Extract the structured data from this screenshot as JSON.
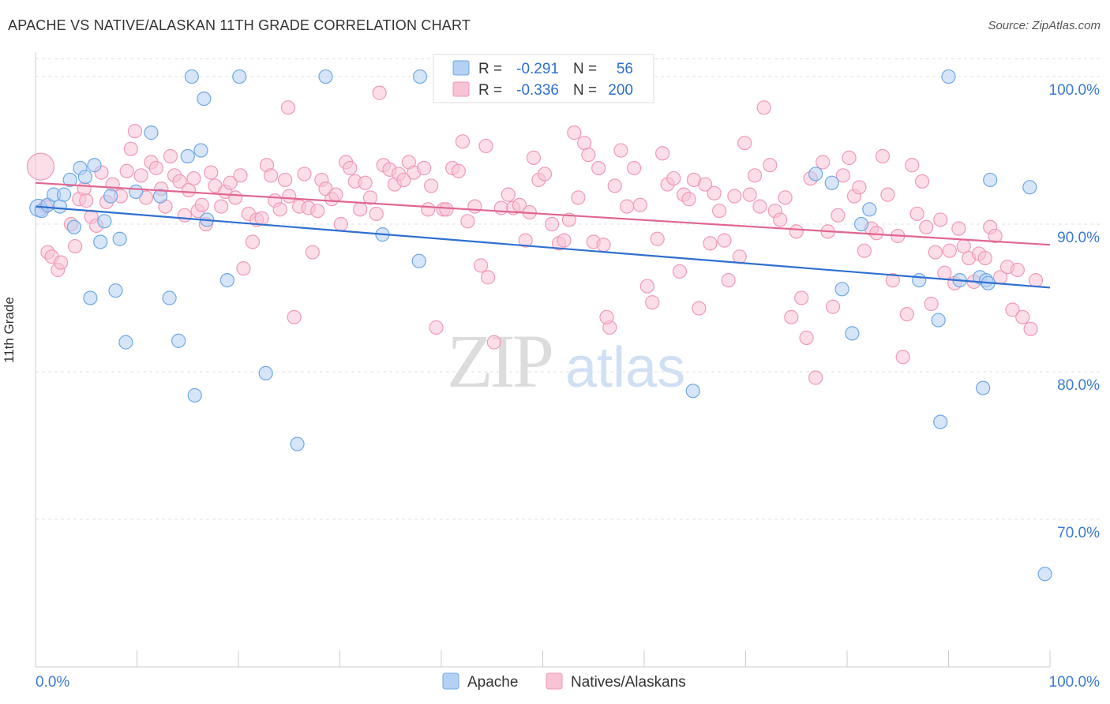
{
  "title": "APACHE VS NATIVE/ALASKAN 11TH GRADE CORRELATION CHART",
  "source": "Source: ZipAtlas.com",
  "watermark": {
    "zip": "ZIP",
    "atlas": "atlas"
  },
  "chart_data": {
    "type": "scatter",
    "xlabel": "",
    "ylabel": "11th Grade",
    "xlim": [
      0,
      100
    ],
    "ylim": [
      60,
      101.5
    ],
    "x_tick_labels": [
      "0.0%",
      "100.0%"
    ],
    "y_ticks": [
      70,
      80,
      90,
      100
    ],
    "y_tick_labels": [
      "70.0%",
      "80.0%",
      "90.0%",
      "100.0%"
    ],
    "grid": true,
    "legend_position": "bottom",
    "stats": [
      {
        "r_label": "R =",
        "r": "-0.291",
        "n_label": "N =",
        "n": "56"
      },
      {
        "r_label": "R =",
        "r": "-0.336",
        "n_label": "N =",
        "n": "200"
      }
    ],
    "series": [
      {
        "name": "Apache",
        "color": "#6fa8e6",
        "fill": "#b4d0f2",
        "line_color": "#2f6fd0",
        "trend": {
          "x": [
            0,
            100
          ],
          "y": [
            91.2,
            85.7
          ]
        },
        "points": [
          [
            0.3,
            91.1
          ],
          [
            0.6,
            90.9
          ],
          [
            1.2,
            91.3
          ],
          [
            1.8,
            92.0
          ],
          [
            2.4,
            91.2
          ],
          [
            2.8,
            92.0
          ],
          [
            3.4,
            93.0
          ],
          [
            3.8,
            89.8
          ],
          [
            4.4,
            93.8
          ],
          [
            4.9,
            93.2
          ],
          [
            5.4,
            85.0
          ],
          [
            5.8,
            94.0
          ],
          [
            6.4,
            88.8
          ],
          [
            6.8,
            90.2
          ],
          [
            7.4,
            91.9
          ],
          [
            7.9,
            85.5
          ],
          [
            8.3,
            89.0
          ],
          [
            8.9,
            82.0
          ],
          [
            9.9,
            92.2
          ],
          [
            11.4,
            96.2
          ],
          [
            12.3,
            91.9
          ],
          [
            13.2,
            85.0
          ],
          [
            14.1,
            82.1
          ],
          [
            15.0,
            94.6
          ],
          [
            15.4,
            100.0
          ],
          [
            15.7,
            78.4
          ],
          [
            16.3,
            95.0
          ],
          [
            16.6,
            98.5
          ],
          [
            16.9,
            90.3
          ],
          [
            18.9,
            86.2
          ],
          [
            20.1,
            100.0
          ],
          [
            22.7,
            79.9
          ],
          [
            25.8,
            75.1
          ],
          [
            28.6,
            100.0
          ],
          [
            34.2,
            89.3
          ],
          [
            37.8,
            87.5
          ],
          [
            37.9,
            100.0
          ],
          [
            64.8,
            78.7
          ],
          [
            76.9,
            93.4
          ],
          [
            78.5,
            92.8
          ],
          [
            79.5,
            85.6
          ],
          [
            80.5,
            82.6
          ],
          [
            81.4,
            90.0
          ],
          [
            82.2,
            91.0
          ],
          [
            87.1,
            86.2
          ],
          [
            89.0,
            83.5
          ],
          [
            89.2,
            76.6
          ],
          [
            90.0,
            100.0
          ],
          [
            91.1,
            86.2
          ],
          [
            93.1,
            86.4
          ],
          [
            93.7,
            86.2
          ],
          [
            93.4,
            78.9
          ],
          [
            93.9,
            86.0
          ],
          [
            94.1,
            93.0
          ],
          [
            98.0,
            92.5
          ],
          [
            99.5,
            66.3
          ]
        ]
      },
      {
        "name": "Natives/Alaskans",
        "color": "#ef9ab8",
        "fill": "#f7c3d5",
        "line_color": "#e0668f",
        "trend": {
          "x": [
            0,
            100
          ],
          "y": [
            92.8,
            88.6
          ]
        },
        "points": [
          [
            0.5,
            93.9
          ],
          [
            1.0,
            91.2
          ],
          [
            1.2,
            88.1
          ],
          [
            1.6,
            87.8
          ],
          [
            2.2,
            86.9
          ],
          [
            2.5,
            87.4
          ],
          [
            3.5,
            90.0
          ],
          [
            3.9,
            88.5
          ],
          [
            4.3,
            91.7
          ],
          [
            4.8,
            92.4
          ],
          [
            5.0,
            91.6
          ],
          [
            5.5,
            90.5
          ],
          [
            6.0,
            89.9
          ],
          [
            6.5,
            93.5
          ],
          [
            7.0,
            91.5
          ],
          [
            7.6,
            92.7
          ],
          [
            8.4,
            91.9
          ],
          [
            9.0,
            93.6
          ],
          [
            9.4,
            95.1
          ],
          [
            9.8,
            96.3
          ],
          [
            10.4,
            93.3
          ],
          [
            10.9,
            91.8
          ],
          [
            11.4,
            94.2
          ],
          [
            11.9,
            93.8
          ],
          [
            12.4,
            92.4
          ],
          [
            12.8,
            91.2
          ],
          [
            13.3,
            94.6
          ],
          [
            13.7,
            93.3
          ],
          [
            14.2,
            92.9
          ],
          [
            14.7,
            90.6
          ],
          [
            15.1,
            92.3
          ],
          [
            15.6,
            93.1
          ],
          [
            16.0,
            90.9
          ],
          [
            16.4,
            91.3
          ],
          [
            16.8,
            90.0
          ],
          [
            17.3,
            93.5
          ],
          [
            17.7,
            92.6
          ],
          [
            18.3,
            91.2
          ],
          [
            18.7,
            92.2
          ],
          [
            19.2,
            92.8
          ],
          [
            19.7,
            91.8
          ],
          [
            20.5,
            87.0
          ],
          [
            21.0,
            90.7
          ],
          [
            21.4,
            88.8
          ],
          [
            21.8,
            90.3
          ],
          [
            22.3,
            90.4
          ],
          [
            22.8,
            94.0
          ],
          [
            23.2,
            93.3
          ],
          [
            23.6,
            91.6
          ],
          [
            24.1,
            91.0
          ],
          [
            24.6,
            93.0
          ],
          [
            25.0,
            91.9
          ],
          [
            25.5,
            83.7
          ],
          [
            26.0,
            91.2
          ],
          [
            26.5,
            93.4
          ],
          [
            26.9,
            91.1
          ],
          [
            27.3,
            88.1
          ],
          [
            27.8,
            90.9
          ],
          [
            28.2,
            93.0
          ],
          [
            28.6,
            92.4
          ],
          [
            29.2,
            91.7
          ],
          [
            29.6,
            92.0
          ],
          [
            30.1,
            90.0
          ],
          [
            30.6,
            94.2
          ],
          [
            31.0,
            93.8
          ],
          [
            31.5,
            92.9
          ],
          [
            32.0,
            91.0
          ],
          [
            32.5,
            92.8
          ],
          [
            33.0,
            91.8
          ],
          [
            33.6,
            90.7
          ],
          [
            34.3,
            94.0
          ],
          [
            34.9,
            93.7
          ],
          [
            35.4,
            92.7
          ],
          [
            35.8,
            93.4
          ],
          [
            36.3,
            93.0
          ],
          [
            36.8,
            94.2
          ],
          [
            37.3,
            93.5
          ],
          [
            38.3,
            93.8
          ],
          [
            39.0,
            92.6
          ],
          [
            39.5,
            83.0
          ],
          [
            40.2,
            91.0
          ],
          [
            40.5,
            91.0
          ],
          [
            41.1,
            93.8
          ],
          [
            41.7,
            93.6
          ],
          [
            42.1,
            95.6
          ],
          [
            42.6,
            90.2
          ],
          [
            43.3,
            91.2
          ],
          [
            43.9,
            87.2
          ],
          [
            44.4,
            95.3
          ],
          [
            44.6,
            86.4
          ],
          [
            45.2,
            82.0
          ],
          [
            45.9,
            91.1
          ],
          [
            46.6,
            92.0
          ],
          [
            47.1,
            91.1
          ],
          [
            47.7,
            91.3
          ],
          [
            48.3,
            88.9
          ],
          [
            48.7,
            90.8
          ],
          [
            49.1,
            94.5
          ],
          [
            49.6,
            93.0
          ],
          [
            50.2,
            93.4
          ],
          [
            50.9,
            90.0
          ],
          [
            51.6,
            88.7
          ],
          [
            52.1,
            88.9
          ],
          [
            52.6,
            90.3
          ],
          [
            53.1,
            96.2
          ],
          [
            53.5,
            91.8
          ],
          [
            54.1,
            95.5
          ],
          [
            54.5,
            94.7
          ],
          [
            55.0,
            88.8
          ],
          [
            55.5,
            93.8
          ],
          [
            56.0,
            88.6
          ],
          [
            56.6,
            83.0
          ],
          [
            57.1,
            92.6
          ],
          [
            57.7,
            95.0
          ],
          [
            58.3,
            91.2
          ],
          [
            59.0,
            93.8
          ],
          [
            59.6,
            91.3
          ],
          [
            60.3,
            85.8
          ],
          [
            60.8,
            84.7
          ],
          [
            61.3,
            89.0
          ],
          [
            61.8,
            94.8
          ],
          [
            62.3,
            92.7
          ],
          [
            62.9,
            93.1
          ],
          [
            63.5,
            86.8
          ],
          [
            63.9,
            92.0
          ],
          [
            64.4,
            91.7
          ],
          [
            64.9,
            93.0
          ],
          [
            65.4,
            84.3
          ],
          [
            66.0,
            92.7
          ],
          [
            66.5,
            88.7
          ],
          [
            66.9,
            92.1
          ],
          [
            67.4,
            90.9
          ],
          [
            67.9,
            88.9
          ],
          [
            68.3,
            86.2
          ],
          [
            68.9,
            91.9
          ],
          [
            69.4,
            87.8
          ],
          [
            69.9,
            95.5
          ],
          [
            70.4,
            92.0
          ],
          [
            70.9,
            93.3
          ],
          [
            71.4,
            91.2
          ],
          [
            71.8,
            97.9
          ],
          [
            72.4,
            94.0
          ],
          [
            72.9,
            90.9
          ],
          [
            73.4,
            90.3
          ],
          [
            73.9,
            91.8
          ],
          [
            74.5,
            83.7
          ],
          [
            75.0,
            89.5
          ],
          [
            75.5,
            85.0
          ],
          [
            76.0,
            82.3
          ],
          [
            76.4,
            93.1
          ],
          [
            76.9,
            79.6
          ],
          [
            77.6,
            94.2
          ],
          [
            78.1,
            89.5
          ],
          [
            78.6,
            84.4
          ],
          [
            79.1,
            90.6
          ],
          [
            79.6,
            93.3
          ],
          [
            80.2,
            94.5
          ],
          [
            80.7,
            91.9
          ],
          [
            81.2,
            92.5
          ],
          [
            81.7,
            88.2
          ],
          [
            82.4,
            89.7
          ],
          [
            82.9,
            89.4
          ],
          [
            83.5,
            94.6
          ],
          [
            84.0,
            92.0
          ],
          [
            84.5,
            86.2
          ],
          [
            85.0,
            89.2
          ],
          [
            85.5,
            81.0
          ],
          [
            85.9,
            83.9
          ],
          [
            86.4,
            94.0
          ],
          [
            86.9,
            90.7
          ],
          [
            87.4,
            92.9
          ],
          [
            87.8,
            89.8
          ],
          [
            88.3,
            84.6
          ],
          [
            88.7,
            88.1
          ],
          [
            89.2,
            90.3
          ],
          [
            89.6,
            86.7
          ],
          [
            90.1,
            88.2
          ],
          [
            90.6,
            86.0
          ],
          [
            91.0,
            89.7
          ],
          [
            91.5,
            88.5
          ],
          [
            92.0,
            87.7
          ],
          [
            92.5,
            86.1
          ],
          [
            93.0,
            88.0
          ],
          [
            93.6,
            87.7
          ],
          [
            94.1,
            89.8
          ],
          [
            94.6,
            89.2
          ],
          [
            95.1,
            86.4
          ],
          [
            95.8,
            87.1
          ],
          [
            96.3,
            84.2
          ],
          [
            96.8,
            86.9
          ],
          [
            97.3,
            83.7
          ],
          [
            98.1,
            82.9
          ],
          [
            98.6,
            86.2
          ],
          [
            60.0,
            100.0
          ],
          [
            56.3,
            83.7
          ],
          [
            38.7,
            91.0
          ],
          [
            24.9,
            97.9
          ],
          [
            20.2,
            93.3
          ],
          [
            33.9,
            98.9
          ],
          [
            58.5,
            98.9
          ]
        ]
      }
    ]
  }
}
